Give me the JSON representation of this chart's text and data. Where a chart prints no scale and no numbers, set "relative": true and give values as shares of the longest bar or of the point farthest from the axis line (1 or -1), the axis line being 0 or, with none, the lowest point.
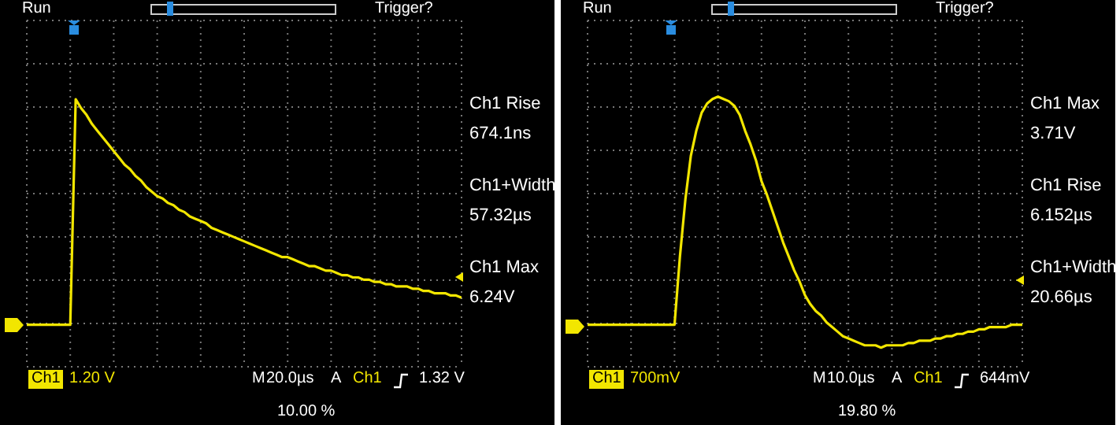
{
  "chart_data": [
    {
      "type": "line",
      "relative": true,
      "grid": true,
      "color": "#f2e600",
      "categories": [
        null,
        null,
        null,
        null,
        null,
        null,
        null,
        null,
        null,
        null,
        null,
        null,
        null,
        null,
        null,
        null,
        null,
        null,
        null,
        null,
        null,
        null,
        null,
        null,
        null,
        null,
        null,
        null,
        null,
        null,
        null,
        null,
        null,
        null,
        null,
        null,
        null,
        null,
        null,
        null,
        null,
        null,
        null,
        null,
        null,
        null,
        null,
        null,
        null,
        null,
        null,
        null,
        null,
        null,
        null,
        null,
        null,
        null,
        null,
        null,
        null,
        null,
        null,
        null,
        null,
        null,
        null,
        null,
        null,
        null,
        null,
        null,
        null,
        null,
        null,
        null,
        null,
        null,
        null,
        null,
        null
      ],
      "values": [
        0,
        0,
        0,
        0,
        0,
        0,
        0,
        0,
        0,
        1.0,
        0.96,
        0.93,
        0.89,
        0.86,
        0.83,
        0.8,
        0.77,
        0.74,
        0.71,
        0.69,
        0.66,
        0.64,
        0.61,
        0.59,
        0.57,
        0.56,
        0.54,
        0.53,
        0.51,
        0.5,
        0.48,
        0.47,
        0.46,
        0.45,
        0.43,
        0.42,
        0.41,
        0.4,
        0.39,
        0.38,
        0.37,
        0.36,
        0.35,
        0.34,
        0.33,
        0.32,
        0.31,
        0.3,
        0.3,
        0.29,
        0.28,
        0.27,
        0.26,
        0.26,
        0.25,
        0.24,
        0.24,
        0.23,
        0.22,
        0.22,
        0.21,
        0.21,
        0.2,
        0.2,
        0.19,
        0.19,
        0.18,
        0.18,
        0.17,
        0.17,
        0.17,
        0.16,
        0.16,
        0.15,
        0.15,
        0.14,
        0.14,
        0.14,
        0.13,
        0.13,
        0.12
      ],
      "annotations": [
        "Run",
        "Trigger?",
        "Ch1 Rise",
        "674.1ns",
        "Ch1+Width",
        "57.32µs",
        "Ch1 Max",
        "6.24V",
        "Ch1",
        "1.20 V",
        "M",
        "20.0µs",
        "A",
        "Ch1",
        "1.32 V",
        "10.00 %"
      ]
    },
    {
      "type": "line",
      "relative": true,
      "grid": true,
      "color": "#f2e600",
      "categories": [
        null,
        null,
        null,
        null,
        null,
        null,
        null,
        null,
        null,
        null,
        null,
        null,
        null,
        null,
        null,
        null,
        null,
        null,
        null,
        null,
        null,
        null,
        null,
        null,
        null,
        null,
        null,
        null,
        null,
        null,
        null,
        null,
        null,
        null,
        null,
        null,
        null,
        null,
        null,
        null,
        null,
        null,
        null,
        null,
        null,
        null,
        null,
        null,
        null,
        null,
        null,
        null,
        null,
        null,
        null,
        null,
        null,
        null,
        null,
        null,
        null,
        null,
        null,
        null,
        null,
        null,
        null,
        null,
        null,
        null,
        null,
        null,
        null,
        null,
        null,
        null,
        null,
        null,
        null,
        null,
        null
      ],
      "values": [
        0,
        0,
        0,
        0,
        0,
        0,
        0,
        0,
        0,
        0,
        0,
        0,
        0,
        0,
        0,
        0,
        0,
        0.3,
        0.55,
        0.74,
        0.85,
        0.93,
        0.97,
        0.99,
        1.0,
        0.99,
        0.98,
        0.96,
        0.92,
        0.85,
        0.79,
        0.72,
        0.63,
        0.57,
        0.5,
        0.43,
        0.36,
        0.3,
        0.24,
        0.19,
        0.13,
        0.09,
        0.06,
        0.04,
        0.01,
        -0.01,
        -0.03,
        -0.05,
        -0.06,
        -0.07,
        -0.08,
        -0.09,
        -0.09,
        -0.09,
        -0.1,
        -0.09,
        -0.09,
        -0.09,
        -0.09,
        -0.08,
        -0.08,
        -0.07,
        -0.07,
        -0.07,
        -0.06,
        -0.06,
        -0.05,
        -0.05,
        -0.04,
        -0.04,
        -0.03,
        -0.03,
        -0.02,
        -0.02,
        -0.01,
        -0.01,
        -0.01,
        -0.01,
        0,
        0,
        0
      ],
      "annotations": [
        "Run",
        "Trigger?",
        "Ch1 Max",
        "3.71V",
        "Ch1 Rise",
        "6.152µs",
        "Ch1+Width",
        "20.66µs",
        "Ch1",
        "700mV",
        "M",
        "10.0µs",
        "A",
        "Ch1",
        "644mV",
        "19.80 %"
      ]
    }
  ]
}
